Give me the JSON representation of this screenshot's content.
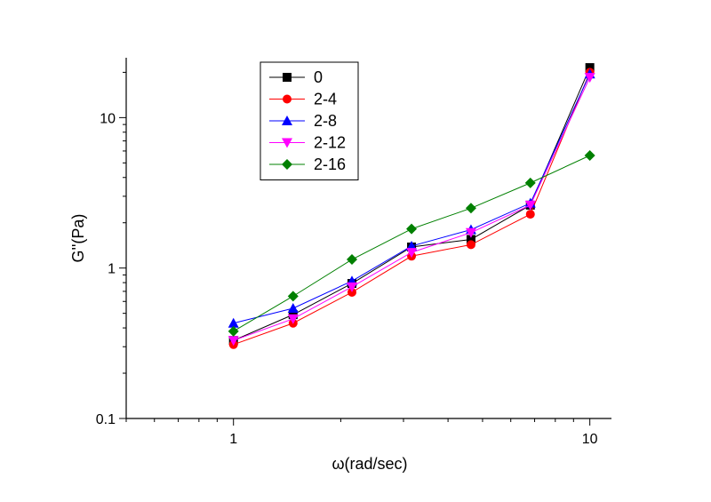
{
  "chart_data": {
    "type": "line",
    "xlabel": "ω(rad/sec)",
    "ylabel": "G''(Pa)",
    "xscale": "log",
    "yscale": "log",
    "xlim": [
      0.5,
      11.5
    ],
    "ylim": [
      0.1,
      25
    ],
    "x_tick_labels": [
      "1",
      "10"
    ],
    "y_tick_labels": [
      "0.1",
      "1",
      "10"
    ],
    "legend_position": "top-left",
    "grid": false,
    "x": [
      1.0,
      1.47,
      2.15,
      3.16,
      4.64,
      6.81,
      10.0
    ],
    "series": [
      {
        "name": "0",
        "color": "#000000",
        "marker": "square",
        "values": [
          0.33,
          0.49,
          0.79,
          1.38,
          1.55,
          2.62,
          21.5
        ]
      },
      {
        "name": "2-4",
        "color": "#ff0000",
        "marker": "circle",
        "values": [
          0.31,
          0.43,
          0.69,
          1.2,
          1.43,
          2.28,
          20.0
        ]
      },
      {
        "name": "2-8",
        "color": "#0000ff",
        "marker": "triangle-up",
        "values": [
          0.43,
          0.54,
          0.82,
          1.4,
          1.8,
          2.7,
          19.5
        ]
      },
      {
        "name": "2-12",
        "color": "#ff00ff",
        "marker": "triangle-down",
        "values": [
          0.33,
          0.46,
          0.75,
          1.27,
          1.72,
          2.62,
          18.5
        ]
      },
      {
        "name": "2-16",
        "color": "#008000",
        "marker": "diamond",
        "values": [
          0.38,
          0.65,
          1.14,
          1.82,
          2.5,
          3.68,
          5.6
        ]
      }
    ]
  }
}
